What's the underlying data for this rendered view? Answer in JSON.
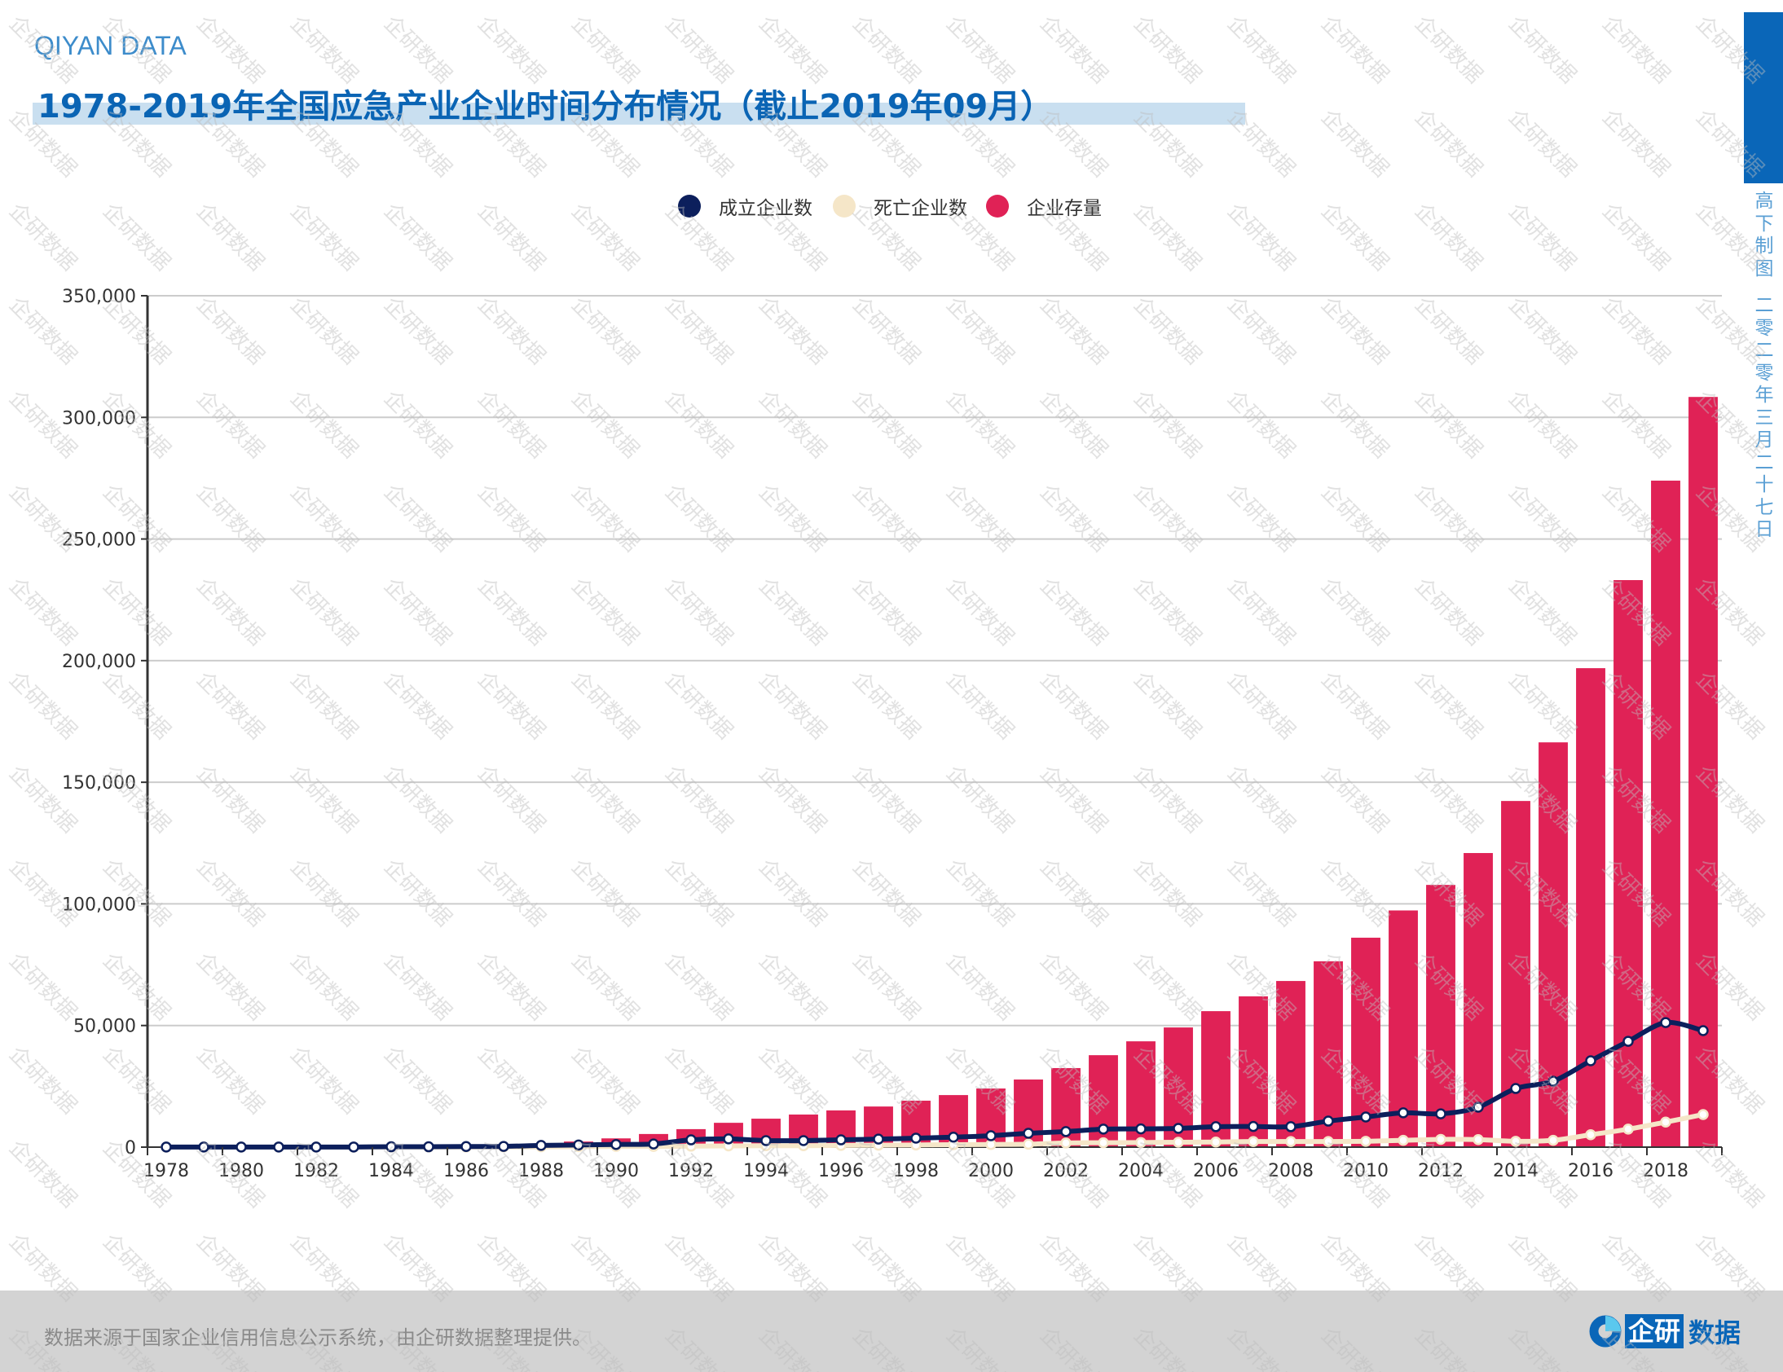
{
  "header": {
    "brand": "QIYAN DATA",
    "title": "1978-2019年全国应急产业企业时间分布情况（截止2019年09月）"
  },
  "sidebar": {
    "credit": "高下制图",
    "date": "二零二零年三月二十七日"
  },
  "legend": {
    "items": [
      {
        "label": "成立企业数",
        "color": "#0c1f5c"
      },
      {
        "label": "死亡企业数",
        "color": "#f5e6c8"
      },
      {
        "label": "企业存量",
        "color": "#e02256"
      }
    ]
  },
  "footer": {
    "source": "数据来源于国家企业信用信息公示系统，由企研数据整理提供。",
    "logo_boxed": "企研",
    "logo_word": "数据"
  },
  "watermark": "企研数据",
  "colors": {
    "brand_blue": "#0a64b4",
    "bar": "#e02256",
    "established_line": "#0c1f5c",
    "death_line": "#f5e6c8",
    "grid": "#cccccc"
  },
  "chart_data": {
    "type": "bar",
    "title": "1978-2019年全国应急产业企业时间分布情况（截止2019年09月）",
    "xlabel": "",
    "ylabel": "",
    "ylim": [
      0,
      350000
    ],
    "yticks": [
      0,
      50000,
      100000,
      150000,
      200000,
      250000,
      300000,
      350000
    ],
    "ytick_labels": [
      "0",
      "50,000",
      "100,000",
      "150,000",
      "200,000",
      "250,000",
      "300,000",
      "350,000"
    ],
    "grid": true,
    "legend_position": "top-center",
    "categories": [
      "1978",
      "1979",
      "1980",
      "1981",
      "1982",
      "1983",
      "1984",
      "1985",
      "1986",
      "1987",
      "1988",
      "1989",
      "1990",
      "1991",
      "1992",
      "1993",
      "1994",
      "1995",
      "1996",
      "1997",
      "1998",
      "1999",
      "2000",
      "2001",
      "2002",
      "2003",
      "2004",
      "2005",
      "2006",
      "2007",
      "2008",
      "2009",
      "2010",
      "2011",
      "2012",
      "2013",
      "2014",
      "2015",
      "2016",
      "2017",
      "2018",
      "2019"
    ],
    "xtick_labels": [
      "1978",
      "1980",
      "1982",
      "1984",
      "1986",
      "1988",
      "1990",
      "1992",
      "1994",
      "1996",
      "1998",
      "2000",
      "2002",
      "2004",
      "2006",
      "2008",
      "2010",
      "2012",
      "2014",
      "2016",
      "2018"
    ],
    "series": [
      {
        "name": "成立企业数",
        "type": "line",
        "values": [
          50,
          30,
          40,
          50,
          40,
          60,
          150,
          150,
          250,
          300,
          700,
          900,
          1100,
          1300,
          3000,
          3400,
          2700,
          2700,
          3000,
          3300,
          3700,
          4100,
          4700,
          5700,
          6400,
          7400,
          7500,
          7700,
          8400,
          8500,
          8400,
          10700,
          12400,
          14100,
          13700,
          16400,
          24100,
          27100,
          35500,
          43500,
          51200,
          47900
        ]
      },
      {
        "name": "死亡企业数",
        "type": "line",
        "values": [
          0,
          0,
          0,
          0,
          0,
          20,
          30,
          40,
          60,
          80,
          120,
          200,
          300,
          300,
          400,
          500,
          600,
          600,
          700,
          800,
          900,
          1000,
          1100,
          1200,
          1700,
          1800,
          1900,
          2000,
          2100,
          2300,
          2300,
          2300,
          2400,
          2800,
          3200,
          3100,
          2400,
          2800,
          5100,
          7400,
          10300,
          13400
        ]
      },
      {
        "name": "企业存量",
        "type": "bar",
        "values": [
          100,
          100,
          150,
          200,
          200,
          250,
          400,
          500,
          700,
          900,
          1500,
          2300,
          3600,
          5400,
          7400,
          10000,
          11700,
          13400,
          15100,
          16700,
          19100,
          21400,
          24100,
          27800,
          32500,
          37800,
          43500,
          49200,
          55900,
          62000,
          68300,
          76400,
          86100,
          97300,
          107800,
          120900,
          142300,
          166400,
          196900,
          233100,
          274000,
          308400
        ]
      }
    ]
  }
}
